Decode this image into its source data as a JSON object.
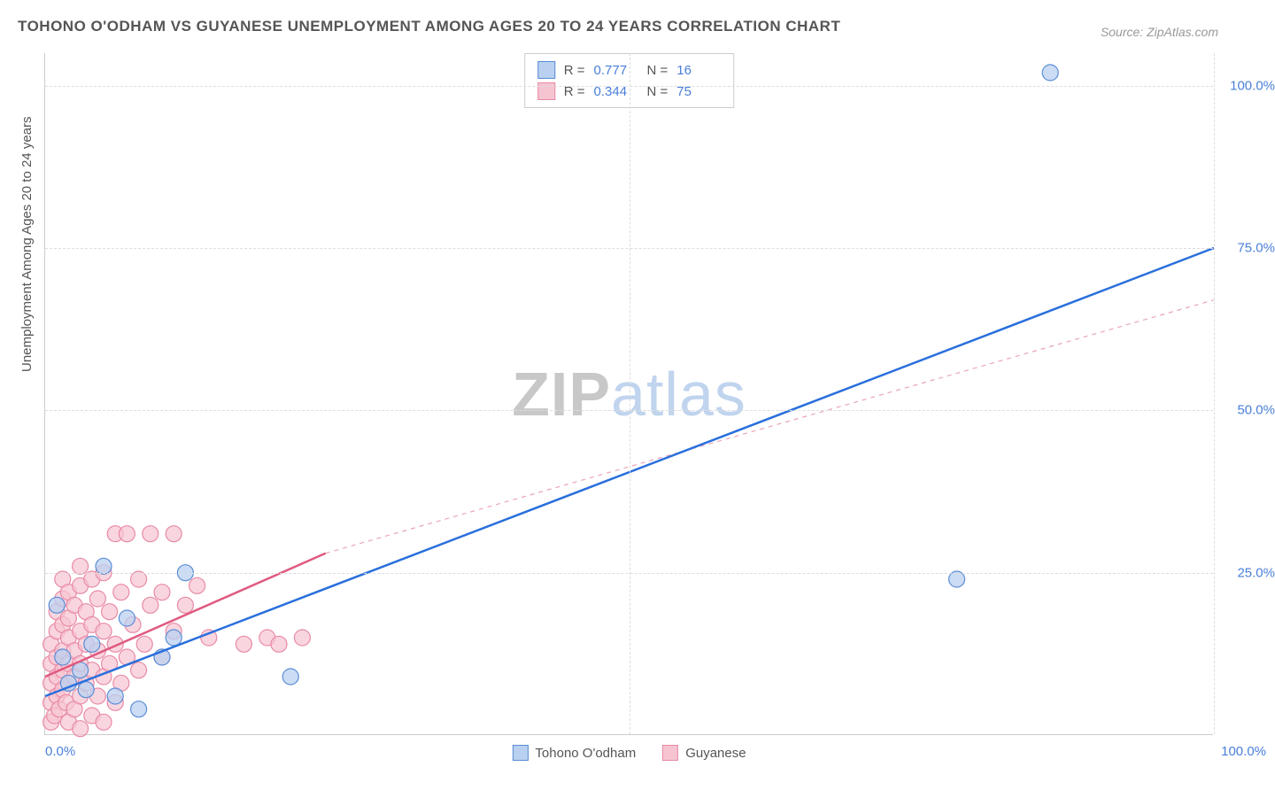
{
  "title": "TOHONO O'ODHAM VS GUYANESE UNEMPLOYMENT AMONG AGES 20 TO 24 YEARS CORRELATION CHART",
  "source": "Source: ZipAtlas.com",
  "y_axis_label": "Unemployment Among Ages 20 to 24 years",
  "watermark": {
    "part1": "ZIP",
    "part2": "atlas"
  },
  "chart": {
    "type": "scatter",
    "xlim": [
      0,
      100
    ],
    "ylim": [
      0,
      105
    ],
    "x_ticks": [
      {
        "pos": 0,
        "label": "0.0%"
      },
      {
        "pos": 100,
        "label": "100.0%"
      }
    ],
    "y_ticks": [
      {
        "pos": 25,
        "label": "25.0%"
      },
      {
        "pos": 50,
        "label": "50.0%"
      },
      {
        "pos": 75,
        "label": "75.0%"
      },
      {
        "pos": 100,
        "label": "100.0%"
      }
    ],
    "grid_h": [
      25,
      50,
      75,
      100
    ],
    "grid_v": [
      50,
      100
    ],
    "background_color": "#ffffff",
    "grid_color": "#dddddd",
    "series": [
      {
        "name": "Tohono O'odham",
        "color_fill": "#b9d0f0",
        "color_stroke": "#5b8dd6",
        "marker_radius": 9,
        "marker_opacity": 0.75,
        "regression": {
          "x1": 0,
          "y1": 6,
          "x2": 100,
          "y2": 75,
          "stroke": "#2a6fdc",
          "width": 2.5,
          "dash": "none"
        },
        "stats": {
          "R": "0.777",
          "N": "16"
        },
        "points": [
          {
            "x": 1,
            "y": 20
          },
          {
            "x": 5,
            "y": 26
          },
          {
            "x": 6,
            "y": 6
          },
          {
            "x": 8,
            "y": 4
          },
          {
            "x": 10,
            "y": 12
          },
          {
            "x": 11,
            "y": 15
          },
          {
            "x": 12,
            "y": 25
          },
          {
            "x": 21,
            "y": 9
          },
          {
            "x": 3,
            "y": 10
          },
          {
            "x": 2,
            "y": 8
          },
          {
            "x": 4,
            "y": 14
          },
          {
            "x": 7,
            "y": 18
          },
          {
            "x": 78,
            "y": 24
          },
          {
            "x": 86,
            "y": 102
          },
          {
            "x": 1.5,
            "y": 12
          },
          {
            "x": 3.5,
            "y": 7
          }
        ]
      },
      {
        "name": "Guyanese",
        "color_fill": "#f6c4d1",
        "color_stroke": "#e88aa5",
        "marker_radius": 9,
        "marker_opacity": 0.7,
        "regression_solid": {
          "x1": 0,
          "y1": 9,
          "x2": 24,
          "y2": 28,
          "stroke": "#e05a80",
          "width": 2.5,
          "dash": "none"
        },
        "regression_dashed": {
          "x1": 24,
          "y1": 28,
          "x2": 100,
          "y2": 67,
          "stroke": "#e9a4b8",
          "width": 1.2,
          "dash": "5,5"
        },
        "stats": {
          "R": "0.344",
          "N": "75"
        },
        "points": [
          {
            "x": 0.5,
            "y": 2
          },
          {
            "x": 0.5,
            "y": 5
          },
          {
            "x": 0.5,
            "y": 8
          },
          {
            "x": 0.5,
            "y": 11
          },
          {
            "x": 0.5,
            "y": 14
          },
          {
            "x": 0.8,
            "y": 3
          },
          {
            "x": 1,
            "y": 6
          },
          {
            "x": 1,
            "y": 9
          },
          {
            "x": 1,
            "y": 12
          },
          {
            "x": 1,
            "y": 16
          },
          {
            "x": 1,
            "y": 19
          },
          {
            "x": 1.2,
            "y": 4
          },
          {
            "x": 1.5,
            "y": 7
          },
          {
            "x": 1.5,
            "y": 10
          },
          {
            "x": 1.5,
            "y": 13
          },
          {
            "x": 1.5,
            "y": 17
          },
          {
            "x": 1.5,
            "y": 21
          },
          {
            "x": 1.5,
            "y": 24
          },
          {
            "x": 1.8,
            "y": 5
          },
          {
            "x": 2,
            "y": 2
          },
          {
            "x": 2,
            "y": 8
          },
          {
            "x": 2,
            "y": 11
          },
          {
            "x": 2,
            "y": 15
          },
          {
            "x": 2,
            "y": 18
          },
          {
            "x": 2,
            "y": 22
          },
          {
            "x": 2.5,
            "y": 4
          },
          {
            "x": 2.5,
            "y": 9
          },
          {
            "x": 2.5,
            "y": 13
          },
          {
            "x": 2.5,
            "y": 20
          },
          {
            "x": 3,
            "y": 1
          },
          {
            "x": 3,
            "y": 6
          },
          {
            "x": 3,
            "y": 11
          },
          {
            "x": 3,
            "y": 16
          },
          {
            "x": 3,
            "y": 23
          },
          {
            "x": 3,
            "y": 26
          },
          {
            "x": 3.5,
            "y": 8
          },
          {
            "x": 3.5,
            "y": 14
          },
          {
            "x": 3.5,
            "y": 19
          },
          {
            "x": 4,
            "y": 3
          },
          {
            "x": 4,
            "y": 10
          },
          {
            "x": 4,
            "y": 17
          },
          {
            "x": 4,
            "y": 24
          },
          {
            "x": 4.5,
            "y": 6
          },
          {
            "x": 4.5,
            "y": 13
          },
          {
            "x": 4.5,
            "y": 21
          },
          {
            "x": 5,
            "y": 2
          },
          {
            "x": 5,
            "y": 9
          },
          {
            "x": 5,
            "y": 16
          },
          {
            "x": 5,
            "y": 25
          },
          {
            "x": 5.5,
            "y": 11
          },
          {
            "x": 5.5,
            "y": 19
          },
          {
            "x": 6,
            "y": 5
          },
          {
            "x": 6,
            "y": 14
          },
          {
            "x": 6,
            "y": 31
          },
          {
            "x": 6.5,
            "y": 8
          },
          {
            "x": 6.5,
            "y": 22
          },
          {
            "x": 7,
            "y": 12
          },
          {
            "x": 7,
            "y": 31
          },
          {
            "x": 7.5,
            "y": 17
          },
          {
            "x": 8,
            "y": 10
          },
          {
            "x": 8,
            "y": 24
          },
          {
            "x": 8.5,
            "y": 14
          },
          {
            "x": 9,
            "y": 20
          },
          {
            "x": 9,
            "y": 31
          },
          {
            "x": 10,
            "y": 12
          },
          {
            "x": 10,
            "y": 22
          },
          {
            "x": 11,
            "y": 16
          },
          {
            "x": 11,
            "y": 31
          },
          {
            "x": 12,
            "y": 20
          },
          {
            "x": 13,
            "y": 23
          },
          {
            "x": 14,
            "y": 15
          },
          {
            "x": 17,
            "y": 14
          },
          {
            "x": 19,
            "y": 15
          },
          {
            "x": 20,
            "y": 14
          },
          {
            "x": 22,
            "y": 15
          }
        ]
      }
    ]
  },
  "legend_bottom": [
    {
      "label": "Tohono O'odham",
      "fill": "#b9d0f0",
      "stroke": "#5b8dd6"
    },
    {
      "label": "Guyanese",
      "fill": "#f6c4d1",
      "stroke": "#e88aa5"
    }
  ]
}
